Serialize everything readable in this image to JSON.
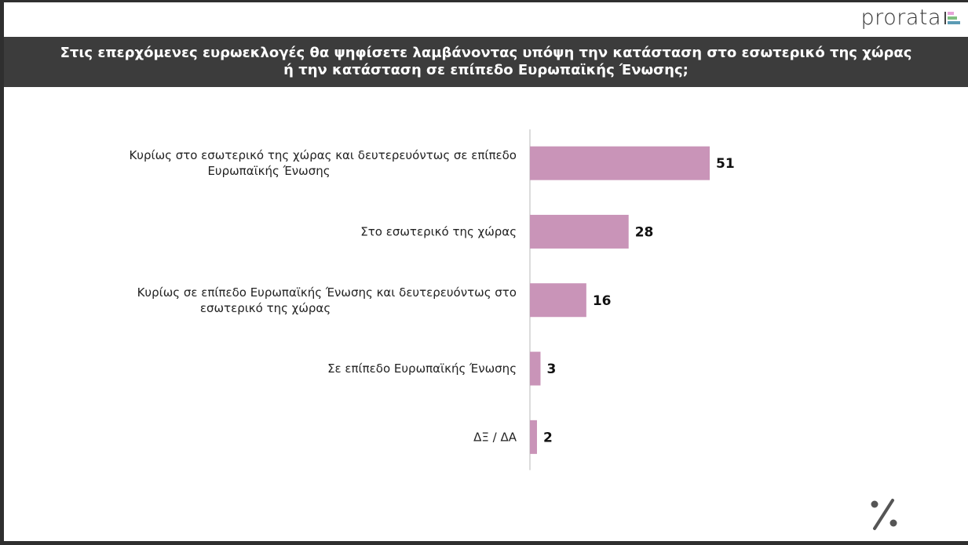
{
  "brand": {
    "name": "prorata",
    "colors": [
      "#e6a3d8",
      "#7fbf7f",
      "#5b9bb5"
    ]
  },
  "chart_data": {
    "type": "bar",
    "orientation": "horizontal",
    "title_line1": "Στις επερχόμενες ευρωεκλογές θα ψηφίσετε λαμβάνοντας υπόψη την κατάσταση στο εσωτερικό της χώρας",
    "title_line2": "ή την κατάσταση σε επίπεδο Ευρωπαϊκής Ένωσης;",
    "categories": [
      [
        "Κυρίως στο εσωτερικό της χώρας και δευτερευόντως σε επίπεδο",
        "Ευρωπαϊκής Ένωσης"
      ],
      [
        "Στο εσωτερικό της χώρας"
      ],
      [
        "Κυρίως σε επίπεδο Ευρωπαϊκής Ένωσης και δευτερευόντως στο",
        "εσωτερικό της χώρας"
      ],
      [
        "Σε επίπεδο Ευρωπαϊκής Ένωσης"
      ],
      [
        "ΔΞ / ΔΑ"
      ]
    ],
    "values": [
      51,
      28,
      16,
      3,
      2
    ],
    "unit": "%",
    "bar_color": "#c994b8",
    "grid": false
  }
}
